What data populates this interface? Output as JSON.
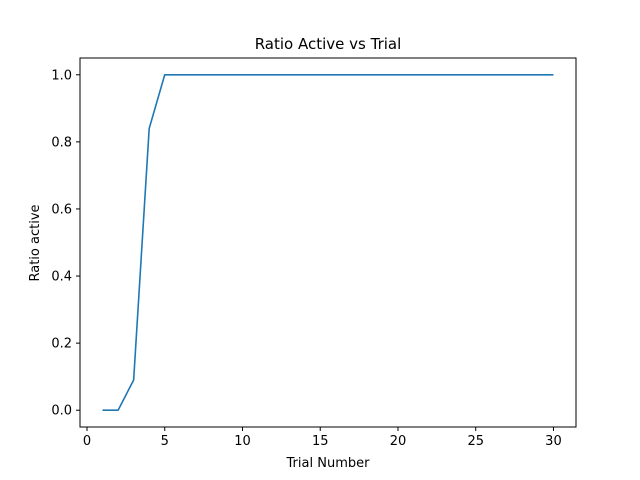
{
  "chart_data": {
    "type": "line",
    "title": "Ratio Active vs Trial",
    "xlabel": "Trial Number",
    "ylabel": "Ratio active",
    "xlim": [
      -0.45,
      31.45
    ],
    "ylim": [
      -0.05,
      1.05
    ],
    "xticks": [
      0,
      5,
      10,
      15,
      20,
      25,
      30
    ],
    "xtick_labels": [
      "0",
      "5",
      "10",
      "15",
      "20",
      "25",
      "30"
    ],
    "yticks": [
      0.0,
      0.2,
      0.4,
      0.6,
      0.8,
      1.0
    ],
    "ytick_labels": [
      "0.0",
      "0.2",
      "0.4",
      "0.6",
      "0.8",
      "1.0"
    ],
    "grid": false,
    "series": [
      {
        "color": "#1f77b4",
        "x": [
          1,
          2,
          3,
          4,
          5,
          6,
          7,
          8,
          9,
          10,
          11,
          12,
          13,
          14,
          15,
          16,
          17,
          18,
          19,
          20,
          21,
          22,
          23,
          24,
          25,
          26,
          27,
          28,
          29,
          30
        ],
        "y": [
          0.0,
          0.0,
          0.09,
          0.84,
          1.0,
          1.0,
          1.0,
          1.0,
          1.0,
          1.0,
          1.0,
          1.0,
          1.0,
          1.0,
          1.0,
          1.0,
          1.0,
          1.0,
          1.0,
          1.0,
          1.0,
          1.0,
          1.0,
          1.0,
          1.0,
          1.0,
          1.0,
          1.0,
          1.0,
          1.0
        ]
      }
    ]
  }
}
